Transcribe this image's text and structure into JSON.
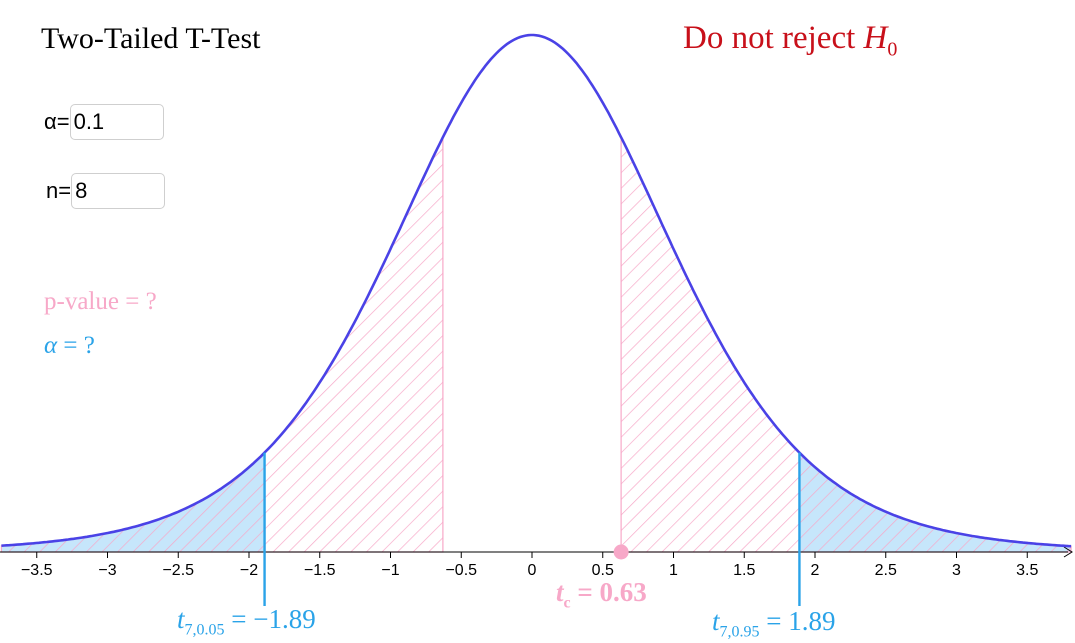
{
  "header": {
    "title": "Two-Tailed T-Test",
    "decision_text": "Do not reject",
    "decision_symbol": "H",
    "decision_subscript": "0",
    "decision_color": "#c8101a"
  },
  "inputs": {
    "alpha_label": "α=",
    "alpha_value": "0.1",
    "n_label": "n=",
    "n_value": "8"
  },
  "info": {
    "pvalue_text": "p-value = ?",
    "alpha_prefix": "α",
    "alpha_rest": " = ?"
  },
  "labels": {
    "left_crit_t": "t",
    "left_crit_sub": "7,0.05",
    "left_crit_value": " = −1.89",
    "right_crit_t": "t",
    "right_crit_sub": "7,0.95",
    "right_crit_value": " = 1.89",
    "tc_t": "t",
    "tc_sub": "c",
    "tc_value": " = 0.63"
  },
  "chart_data": {
    "type": "area",
    "distribution": "Student t",
    "degrees_of_freedom": 7,
    "xlim": [
      -3.75,
      3.81
    ],
    "x_ticks": [
      -3.5,
      -3,
      -2.5,
      -2,
      -1.5,
      -1,
      -0.5,
      0,
      0.5,
      1,
      1.5,
      2,
      2.5,
      3,
      3.5
    ],
    "x_tick_labels": [
      "−3.5",
      "−3",
      "−2.5",
      "−2",
      "−1.5",
      "−1",
      "−0.5",
      "0",
      "0.5",
      "1",
      "1.5",
      "2",
      "2.5",
      "3",
      "3.5"
    ],
    "alpha": 0.1,
    "n": 8,
    "critical_values": [
      -1.89,
      1.89
    ],
    "t_statistic": 0.63,
    "rejection_region_fill": "#c6e6fb",
    "pvalue_hatch_color": "#f7a8c8",
    "curve_color": "#4a42e6",
    "critical_line_color": "#2aa3e8"
  }
}
